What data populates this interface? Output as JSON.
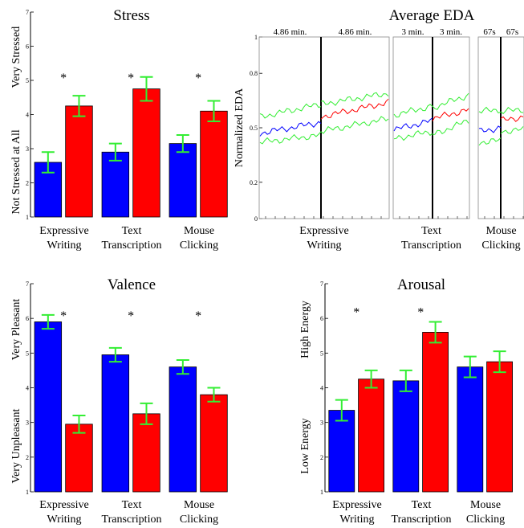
{
  "colors": {
    "before": "#0000ff",
    "after": "#ff0000",
    "error_bar": "#33ee33",
    "axis": "#000000",
    "significance": "#555555"
  },
  "chart_data": [
    {
      "id": "stress",
      "type": "bar",
      "title": "Stress",
      "categories": [
        [
          "Expressive",
          "Writing"
        ],
        [
          "Text",
          "Transcription"
        ],
        [
          "Mouse",
          "Clicking"
        ]
      ],
      "ylabel_low": "Not Stressed at All",
      "ylabel_high": "Very Stressed",
      "ylim": [
        1,
        7
      ],
      "yticks": [
        1,
        2,
        3,
        4,
        5,
        6,
        7
      ],
      "series": [
        {
          "color": "before",
          "values": [
            2.6,
            2.9,
            3.15
          ],
          "err_low": [
            2.3,
            2.65,
            2.9
          ],
          "err_high": [
            2.9,
            3.15,
            3.4
          ]
        },
        {
          "color": "after",
          "values": [
            4.25,
            4.75,
            4.1
          ],
          "err_low": [
            3.95,
            4.4,
            3.8
          ],
          "err_high": [
            4.55,
            5.1,
            4.4
          ]
        }
      ],
      "significance": [
        "*",
        "*",
        "*"
      ],
      "significance_y": 5.1
    },
    {
      "id": "valence",
      "type": "bar",
      "title": "Valence",
      "categories": [
        [
          "Expressive",
          "Writing"
        ],
        [
          "Text",
          "Transcription"
        ],
        [
          "Mouse",
          "Clicking"
        ]
      ],
      "ylabel_low": "Very Unpleasant",
      "ylabel_high": "Very Pleasant",
      "ylim": [
        1,
        7
      ],
      "yticks": [
        1,
        2,
        3,
        4,
        5,
        6,
        7
      ],
      "series": [
        {
          "color": "before",
          "values": [
            5.9,
            4.95,
            4.6
          ],
          "err_low": [
            5.7,
            4.75,
            4.4
          ],
          "err_high": [
            6.1,
            5.15,
            4.8
          ]
        },
        {
          "color": "after",
          "values": [
            2.95,
            3.25,
            3.8
          ],
          "err_low": [
            2.7,
            2.95,
            3.6
          ],
          "err_high": [
            3.2,
            3.55,
            4.0
          ]
        }
      ],
      "significance": [
        "*",
        "*",
        "*"
      ],
      "significance_y": 6.1
    },
    {
      "id": "arousal",
      "type": "bar",
      "title": "Arousal",
      "categories": [
        [
          "Expressive",
          "Writing"
        ],
        [
          "Text",
          "Transcription"
        ],
        [
          "Mouse",
          "Clicking"
        ]
      ],
      "ylabel_low": "Low Energy",
      "ylabel_high": "High Energy",
      "ylim": [
        1,
        7
      ],
      "yticks": [
        1,
        2,
        3,
        4,
        5,
        6,
        7
      ],
      "series": [
        {
          "color": "before",
          "values": [
            3.35,
            4.2,
            4.6
          ],
          "err_low": [
            3.05,
            3.9,
            4.3
          ],
          "err_high": [
            3.65,
            4.5,
            4.9
          ]
        },
        {
          "color": "after",
          "values": [
            4.25,
            5.6,
            4.75
          ],
          "err_low": [
            4.0,
            5.3,
            4.45
          ],
          "err_high": [
            4.5,
            5.9,
            5.05
          ]
        }
      ],
      "significance": [
        "*",
        "*",
        ""
      ],
      "significance_y": 6.2
    },
    {
      "id": "eda",
      "type": "line",
      "title": "Average EDA",
      "ylabel": "Normalized EDA",
      "ylim": [
        0,
        1
      ],
      "yticks": [
        0,
        0.2,
        0.5,
        0.8,
        1
      ],
      "ytick_labels": [
        "0",
        "0.2",
        "0.5",
        "0.8",
        "1"
      ],
      "categories": [
        [
          "Expressive",
          "Writing"
        ],
        [
          "Text",
          "Transcription"
        ],
        [
          "Mouse",
          "Clicking"
        ]
      ],
      "segment_labels": [
        "4.86 min.",
        "4.86 min.",
        "3 min.",
        "3 min.",
        "67s",
        "67s"
      ],
      "series": [
        {
          "color": "before",
          "label": "",
          "mean": [
            [
              0.47,
              0.53
            ],
            [
              0.49,
              0.54
            ],
            [
              0.48,
              0.5
            ]
          ],
          "upper": [
            [
              0.56,
              0.63
            ],
            [
              0.57,
              0.62
            ],
            [
              0.59,
              0.6
            ]
          ],
          "lower": [
            [
              0.42,
              0.46
            ],
            [
              0.44,
              0.48
            ],
            [
              0.42,
              0.43
            ]
          ]
        },
        {
          "color": "after",
          "label": "",
          "mean": [
            [
              0.56,
              0.64
            ],
            [
              0.55,
              0.6
            ],
            [
              0.54,
              0.56
            ]
          ],
          "upper": [
            [
              0.63,
              0.69
            ],
            [
              0.61,
              0.68
            ],
            [
              0.59,
              0.6
            ]
          ],
          "lower": [
            [
              0.48,
              0.55
            ],
            [
              0.46,
              0.54
            ],
            [
              0.48,
              0.49
            ]
          ]
        }
      ]
    }
  ]
}
